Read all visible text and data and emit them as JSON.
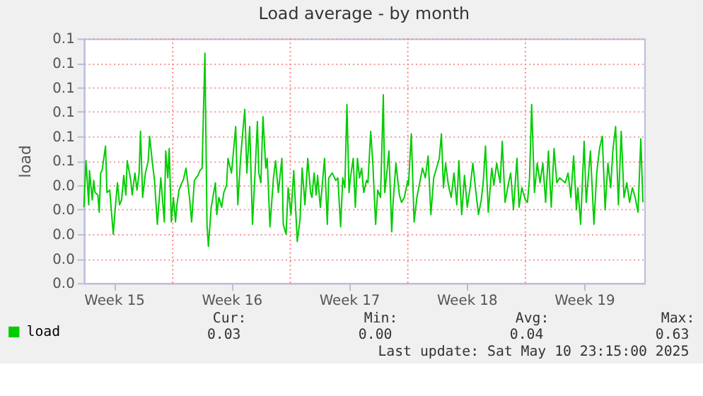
{
  "chart_data": {
    "type": "line",
    "title": "Load average - by month",
    "ylabel": "load",
    "xlim": [
      "2025-04-08T17:00",
      "2025-05-12T02:00"
    ],
    "ylim": [
      0,
      0.1
    ],
    "xticks": [
      {
        "value": "2025-04-10T12:00",
        "label": "Week 15"
      },
      {
        "value": "2025-04-17T12:00",
        "label": "Week 16"
      },
      {
        "value": "2025-04-24T12:00",
        "label": "Week 17"
      },
      {
        "value": "2025-05-01T12:00",
        "label": "Week 18"
      },
      {
        "value": "2025-05-08T12:00",
        "label": "Week 19"
      }
    ],
    "yticks": [
      {
        "value": 0,
        "label": "0.0"
      },
      {
        "value": 0.01,
        "label": "0.0"
      },
      {
        "value": 0.02,
        "label": "0.0"
      },
      {
        "value": 0.03,
        "label": "0.0"
      },
      {
        "value": 0.04,
        "label": "0.0"
      },
      {
        "value": 0.05,
        "label": "0.1"
      },
      {
        "value": 0.06,
        "label": "0.1"
      },
      {
        "value": 0.07,
        "label": "0.1"
      },
      {
        "value": 0.08,
        "label": "0.1"
      },
      {
        "value": 0.09,
        "label": "0.1"
      },
      {
        "value": 0.1,
        "label": "0.1"
      }
    ],
    "grid": "y",
    "legend": "bottom left",
    "line_style": "solid",
    "ref_lines": [
      {
        "axis": "x",
        "value": "2025-04-14T00:00",
        "color": "#ff8080",
        "line_style": "dotted"
      },
      {
        "axis": "x",
        "value": "2025-04-21T00:00",
        "color": "#ff8080",
        "line_style": "dotted"
      },
      {
        "axis": "x",
        "value": "2025-04-28T00:00",
        "color": "#ff8080",
        "line_style": "dotted"
      },
      {
        "axis": "x",
        "value": "2025-05-05T00:00",
        "color": "#ff8080",
        "line_style": "dotted"
      }
    ],
    "annotations": [
      "Cur:",
      "Min:",
      "Avg:",
      "Max:",
      "0.03",
      "0.00",
      "0.04",
      "0.63",
      "Last update: Sat May 10 23:15:00 2025"
    ],
    "series": [
      {
        "name": "load",
        "color": "#00cc00",
        "x": [
          "2025-04-08T17:00",
          "2025-04-08T20:00",
          "2025-04-09T00:00",
          "2025-04-09T01:00",
          "2025-04-09T05:00",
          "2025-04-09T07:00",
          "2025-04-09T09:00",
          "2025-04-09T13:00",
          "2025-04-09T15:00",
          "2025-04-09T17:00",
          "2025-04-09T19:00",
          "2025-04-10T00:00",
          "2025-04-10T02:00",
          "2025-04-10T06:00",
          "2025-04-10T11:00",
          "2025-04-10T14:00",
          "2025-04-10T17:00",
          "2025-04-10T20:00",
          "2025-04-10T23:00",
          "2025-04-11T02:00",
          "2025-04-11T05:00",
          "2025-04-11T07:00",
          "2025-04-11T12:00",
          "2025-04-11T14:00",
          "2025-04-11T18:00",
          "2025-04-11T21:00",
          "2025-04-12T00:00",
          "2025-04-12T02:00",
          "2025-04-12T05:00",
          "2025-04-12T09:00",
          "2025-04-12T13:00",
          "2025-04-12T15:00",
          "2025-04-12T19:00",
          "2025-04-12T22:00",
          "2025-04-13T02:00",
          "2025-04-13T07:00",
          "2025-04-13T12:00",
          "2025-04-13T14:00",
          "2025-04-13T17:00",
          "2025-04-13T19:00",
          "2025-04-13T22:00",
          "2025-04-14T01:00",
          "2025-04-14T04:00",
          "2025-04-14T06:00",
          "2025-04-14T09:00",
          "2025-04-14T13:00",
          "2025-04-14T15:00",
          "2025-04-14T19:00",
          "2025-04-15T00:00",
          "2025-04-15T03:00",
          "2025-04-15T07:00",
          "2025-04-15T12:00",
          "2025-04-15T15:00",
          "2025-04-15T18:00",
          "2025-04-15T22:00",
          "2025-04-16T01:00",
          "2025-04-16T03:00",
          "2025-04-16T07:00",
          "2025-04-16T10:00",
          "2025-04-16T13:00",
          "2025-04-16T15:00",
          "2025-04-16T18:00",
          "2025-04-16T22:00",
          "2025-04-17T01:00",
          "2025-04-17T05:00",
          "2025-04-17T07:00",
          "2025-04-17T12:00",
          "2025-04-17T14:00",
          "2025-04-17T18:00",
          "2025-04-17T21:00",
          "2025-04-18T01:00",
          "2025-04-18T03:00",
          "2025-04-18T07:00",
          "2025-04-18T10:00",
          "2025-04-18T14:00",
          "2025-04-18T18:00",
          "2025-04-18T22:00",
          "2025-04-19T01:00",
          "2025-04-19T03:00",
          "2025-04-19T06:00",
          "2025-04-19T09:00",
          "2025-04-19T13:00",
          "2025-04-19T15:00",
          "2025-04-19T19:00",
          "2025-04-20T00:00",
          "2025-04-20T03:00",
          "2025-04-20T07:00",
          "2025-04-20T12:00",
          "2025-04-20T14:00",
          "2025-04-20T18:00",
          "2025-04-20T21:00",
          "2025-04-21T01:00",
          "2025-04-21T05:00",
          "2025-04-21T10:00",
          "2025-04-21T14:00",
          "2025-04-21T17:00",
          "2025-04-21T21:00",
          "2025-04-22T01:00",
          "2025-04-22T05:00",
          "2025-04-22T07:00",
          "2025-04-22T10:00",
          "2025-04-22T13:00",
          "2025-04-22T15:00",
          "2025-04-22T19:00",
          "2025-04-23T01:00",
          "2025-04-23T05:00",
          "2025-04-23T07:00",
          "2025-04-23T12:00",
          "2025-04-23T17:00",
          "2025-04-23T20:00",
          "2025-04-24T00:00",
          "2025-04-24T03:00",
          "2025-04-24T06:00",
          "2025-04-24T09:00",
          "2025-04-24T12:00",
          "2025-04-24T14:00",
          "2025-04-24T18:00",
          "2025-04-24T21:00",
          "2025-04-25T00:00",
          "2025-04-25T03:00",
          "2025-04-25T06:00",
          "2025-04-25T09:00",
          "2025-04-25T13:00",
          "2025-04-25T15:00",
          "2025-04-25T19:00",
          "2025-04-25T22:00",
          "2025-04-26T02:00",
          "2025-04-26T05:00",
          "2025-04-26T09:00",
          "2025-04-26T13:00",
          "2025-04-26T15:00",
          "2025-04-26T18:00",
          "2025-04-26T21:00",
          "2025-04-27T01:00",
          "2025-04-27T03:00",
          "2025-04-27T07:00",
          "2025-04-27T12:00",
          "2025-04-27T15:00",
          "2025-04-27T19:00",
          "2025-04-28T00:00",
          "2025-04-28T01:00",
          "2025-04-28T05:00",
          "2025-04-28T09:00",
          "2025-04-28T13:00",
          "2025-04-28T17:00",
          "2025-04-28T21:00",
          "2025-04-29T01:00",
          "2025-04-29T05:00",
          "2025-04-29T09:00",
          "2025-04-29T13:00",
          "2025-04-29T17:00",
          "2025-04-29T21:00",
          "2025-04-30T00:00",
          "2025-04-30T03:00",
          "2025-04-30T06:00",
          "2025-04-30T10:00",
          "2025-04-30T14:00",
          "2025-04-30T18:00",
          "2025-04-30T22:00",
          "2025-05-01T01:00",
          "2025-05-01T05:00",
          "2025-05-01T09:00",
          "2025-05-01T13:00",
          "2025-05-01T17:00",
          "2025-05-01T21:00",
          "2025-05-02T01:00",
          "2025-05-02T05:00",
          "2025-05-02T09:00",
          "2025-05-02T12:00",
          "2025-05-02T15:00",
          "2025-05-02T19:00",
          "2025-05-03T00:00",
          "2025-05-03T03:00",
          "2025-05-03T07:00",
          "2025-05-03T12:00",
          "2025-05-03T15:00",
          "2025-05-03T19:00",
          "2025-05-04T00:00",
          "2025-05-04T03:00",
          "2025-05-04T07:00",
          "2025-05-04T12:00",
          "2025-05-04T15:00",
          "2025-05-04T19:00",
          "2025-05-05T00:00",
          "2025-05-05T03:00",
          "2025-05-05T06:00",
          "2025-05-05T09:00",
          "2025-05-05T13:00",
          "2025-05-05T17:00",
          "2025-05-05T21:00",
          "2025-05-06T01:00",
          "2025-05-06T05:00",
          "2025-05-06T09:00",
          "2025-05-06T13:00",
          "2025-05-06T17:00",
          "2025-05-06T21:00",
          "2025-05-07T01:00",
          "2025-05-07T05:00",
          "2025-05-07T09:00",
          "2025-05-07T13:00",
          "2025-05-07T17:00",
          "2025-05-07T21:00",
          "2025-05-08T01:00",
          "2025-05-08T03:00",
          "2025-05-08T07:00",
          "2025-05-08T12:00",
          "2025-05-08T15:00",
          "2025-05-08T21:00",
          "2025-05-09T02:00",
          "2025-05-09T06:00",
          "2025-05-09T10:00",
          "2025-05-09T14:00",
          "2025-05-09T18:00",
          "2025-05-09T22:00",
          "2025-05-10T02:00",
          "2025-05-10T05:00",
          "2025-05-10T09:00",
          "2025-05-10T13:00",
          "2025-05-10T17:00",
          "2025-05-10T21:00",
          "2025-05-11T01:00",
          "2025-05-11T05:00",
          "2025-05-11T09:00",
          "2025-05-11T13:00",
          "2025-05-11T17:00",
          "2025-05-11T21:00",
          "2025-05-12T00:00"
        ],
        "values": [
          0.031,
          0.05,
          0.032,
          0.046,
          0.034,
          0.042,
          0.037,
          0.036,
          0.029,
          0.045,
          0.046,
          0.056,
          0.037,
          0.038,
          0.02,
          0.031,
          0.041,
          0.032,
          0.034,
          0.044,
          0.036,
          0.05,
          0.042,
          0.036,
          0.045,
          0.038,
          0.045,
          0.062,
          0.035,
          0.045,
          0.05,
          0.06,
          0.049,
          0.042,
          0.024,
          0.043,
          0.025,
          0.054,
          0.043,
          0.055,
          0.025,
          0.035,
          0.025,
          0.032,
          0.038,
          0.041,
          0.042,
          0.047,
          0.035,
          0.025,
          0.042,
          0.044,
          0.046,
          0.047,
          0.094,
          0.024,
          0.015,
          0.031,
          0.036,
          0.041,
          0.028,
          0.035,
          0.031,
          0.037,
          0.04,
          0.051,
          0.045,
          0.051,
          0.064,
          0.032,
          0.051,
          0.058,
          0.071,
          0.045,
          0.064,
          0.024,
          0.047,
          0.066,
          0.045,
          0.041,
          0.068,
          0.047,
          0.051,
          0.023,
          0.043,
          0.05,
          0.037,
          0.051,
          0.024,
          0.02,
          0.039,
          0.028,
          0.046,
          0.017,
          0.026,
          0.047,
          0.032,
          0.051,
          0.037,
          0.035,
          0.045,
          0.036,
          0.044,
          0.031,
          0.051,
          0.024,
          0.043,
          0.045,
          0.042,
          0.043,
          0.023,
          0.043,
          0.039,
          0.073,
          0.037,
          0.043,
          0.051,
          0.031,
          0.051,
          0.043,
          0.047,
          0.037,
          0.042,
          0.041,
          0.062,
          0.049,
          0.024,
          0.038,
          0.035,
          0.077,
          0.037,
          0.045,
          0.054,
          0.021,
          0.033,
          0.049,
          0.036,
          0.033,
          0.035,
          0.042,
          0.04,
          0.061,
          0.025,
          0.035,
          0.041,
          0.047,
          0.043,
          0.052,
          0.028,
          0.043,
          0.047,
          0.051,
          0.061,
          0.039,
          0.049,
          0.04,
          0.035,
          0.045,
          0.032,
          0.05,
          0.028,
          0.044,
          0.031,
          0.039,
          0.049,
          0.038,
          0.028,
          0.034,
          0.042,
          0.056,
          0.029,
          0.047,
          0.04,
          0.049,
          0.041,
          0.058,
          0.033,
          0.041,
          0.045,
          0.03,
          0.051,
          0.031,
          0.039,
          0.034,
          0.033,
          0.043,
          0.073,
          0.037,
          0.049,
          0.041,
          0.049,
          0.033,
          0.054,
          0.031,
          0.055,
          0.041,
          0.043,
          0.042,
          0.041,
          0.045,
          0.035,
          0.052,
          0.03,
          0.039,
          0.024,
          0.058,
          0.033,
          0.054,
          0.024,
          0.045,
          0.055,
          0.06,
          0.03,
          0.049,
          0.039,
          0.054,
          0.064,
          0.032,
          0.062,
          0.035,
          0.041,
          0.033,
          0.039,
          0.035,
          0.029,
          0.059,
          0.033
        ]
      }
    ]
  }
}
